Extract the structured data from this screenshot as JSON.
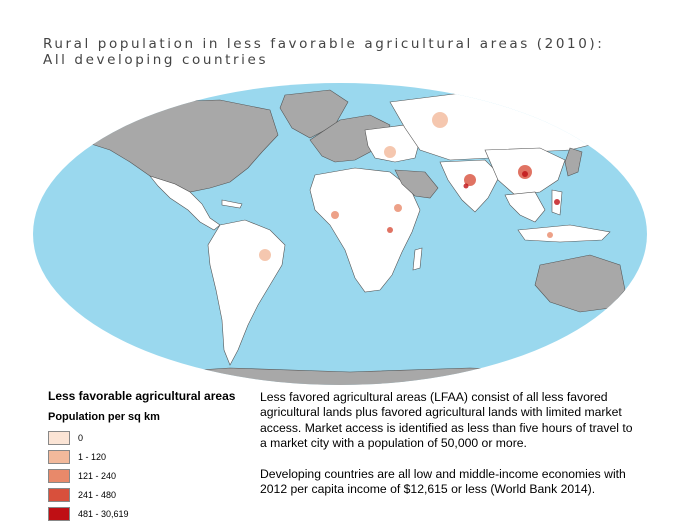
{
  "title": {
    "line1": "Rural population in less favorable agricultural areas (2010):",
    "line2": "All developing countries"
  },
  "legend": {
    "title": "Less favorable agricultural areas",
    "subtitle": "Population per sq km",
    "items": [
      {
        "label": "0",
        "color": "#fbe4d5"
      },
      {
        "label": "1 - 120",
        "color": "#f2b99b"
      },
      {
        "label": "121 - 240",
        "color": "#e8896a"
      },
      {
        "label": "241 - 480",
        "color": "#d8503c"
      },
      {
        "label": "481 - 30,619",
        "color": "#bf0f14"
      }
    ]
  },
  "description": {
    "p1": "Less favored agricultural areas (LFAA) consist of all less favored agricultural lands plus favored agricultural lands with limited market access. Market access is identified as less than five hours of travel to a market city with a population of 50,000 or more.",
    "p2": "Developing countries are all low and middle-income economies with 2012 per capita income of $12,615 or less (World Bank 2014)."
  },
  "map_colors": {
    "ocean": "#9ad8ee",
    "developed": "#a8a8a8",
    "developing": "#ffffff",
    "borders": "#333333"
  }
}
